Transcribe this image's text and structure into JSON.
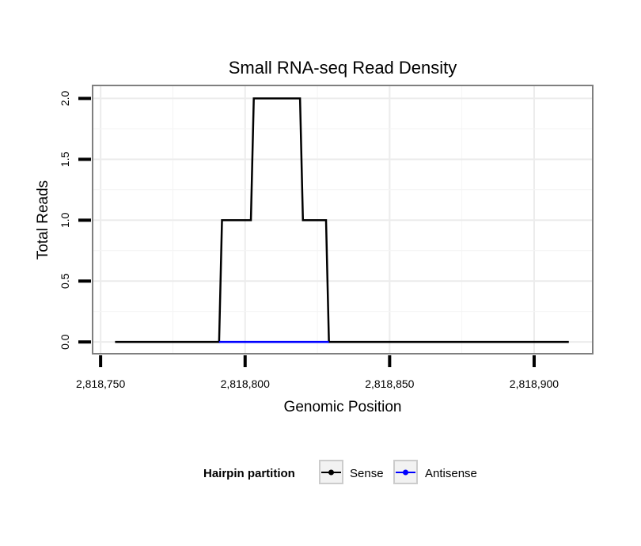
{
  "chart_data": {
    "type": "line",
    "title": "Small RNA-seq Read Density",
    "xlabel": "Genomic Position",
    "ylabel": "Total Reads",
    "xlim": [
      2818747.5,
      2818920
    ],
    "ylim": [
      -0.09,
      2.1
    ],
    "x_ticks": [
      2818750,
      2818800,
      2818850,
      2818900
    ],
    "x_tick_labels": [
      "2,818,750",
      "2,818,800",
      "2,818,850",
      "2,818,900"
    ],
    "y_ticks": [
      0,
      0.5,
      1,
      1.5,
      2
    ],
    "y_tick_labels": [
      "0.0",
      "0.5",
      "1.0",
      "1.5",
      "2.0"
    ],
    "grid": true,
    "legend": {
      "title": "Hairpin partition",
      "position": "bottom",
      "entries": [
        {
          "name": "Sense",
          "color": "#000000"
        },
        {
          "name": "Antisense",
          "color": "#0000ff"
        }
      ]
    },
    "series": [
      {
        "name": "Sense",
        "color": "#000000",
        "x": [
          2818755,
          2818791,
          2818792,
          2818802,
          2818803,
          2818819,
          2818820,
          2818828,
          2818829,
          2818912
        ],
        "y": [
          0,
          0,
          1,
          1,
          2,
          2,
          1,
          1,
          0,
          0
        ]
      },
      {
        "name": "Antisense",
        "color": "#0000ff",
        "x": [
          2818791,
          2818829
        ],
        "y": [
          0,
          0
        ]
      }
    ]
  }
}
